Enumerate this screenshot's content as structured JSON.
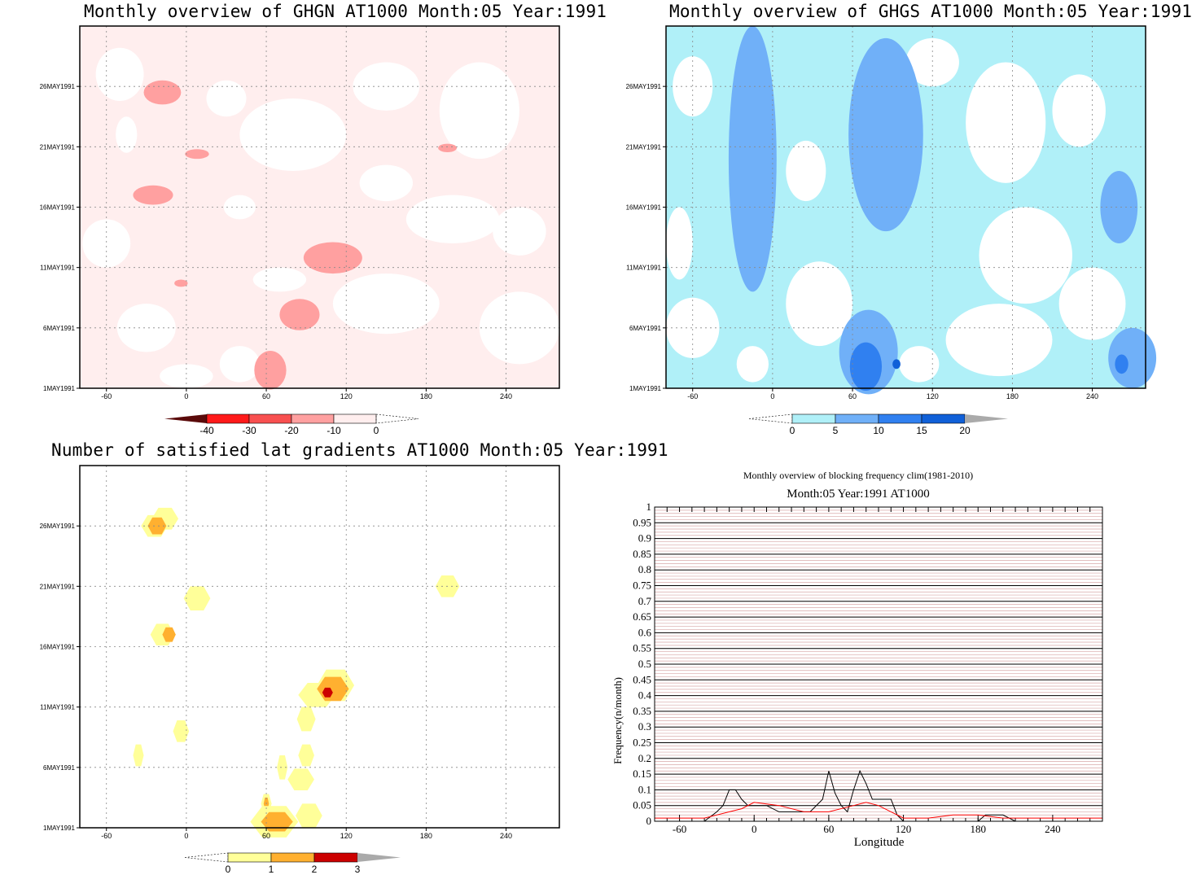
{
  "chart_data": [
    {
      "type": "heatmap",
      "title": "Monthly overview of GHGN AT1000 Month:05 Year:1991",
      "x_ticks": [
        "-60",
        "0",
        "60",
        "120",
        "180",
        "240"
      ],
      "y_ticks": [
        "1MAY1991",
        "6MAY1991",
        "11MAY1991",
        "16MAY1991",
        "21MAY1991",
        "26MAY1991"
      ],
      "xlim": [
        -80,
        280
      ],
      "ylim": [
        1,
        31
      ],
      "colorbar": {
        "levels": [
          "-40",
          "-30",
          "-20",
          "-10",
          "0"
        ],
        "colors": [
          "#5a0a0a",
          "#ff1a1a",
          "#f85050",
          "#ffa0a0",
          "#ffeeee"
        ]
      },
      "blobs": [
        {
          "lon": -18,
          "day": 25.5,
          "rlon": 14,
          "rday": 1.0,
          "level": -10
        },
        {
          "lon": 8,
          "day": 20.4,
          "rlon": 9,
          "rday": 0.4,
          "level": -10
        },
        {
          "lon": -25,
          "day": 17.0,
          "rlon": 15,
          "rday": 0.8,
          "level": -10
        },
        {
          "lon": 110,
          "day": 11.8,
          "rlon": 22,
          "rday": 1.3,
          "level": -10
        },
        {
          "lon": -4,
          "day": 9.7,
          "rlon": 5,
          "rday": 0.3,
          "level": -10
        },
        {
          "lon": 85,
          "day": 7.1,
          "rlon": 15,
          "rday": 1.3,
          "level": -10
        },
        {
          "lon": 63,
          "day": 2.5,
          "rlon": 12,
          "rday": 1.6,
          "level": -10
        },
        {
          "lon": 196,
          "day": 20.9,
          "rlon": 7,
          "rday": 0.35,
          "level": -10
        }
      ]
    },
    {
      "type": "heatmap",
      "title": "Monthly overview of GHGS AT1000 Month:05 Year:1991",
      "x_ticks": [
        "-60",
        "0",
        "60",
        "120",
        "180",
        "240"
      ],
      "y_ticks": [
        "1MAY1991",
        "6MAY1991",
        "11MAY1991",
        "16MAY1991",
        "21MAY1991",
        "26MAY1991"
      ],
      "xlim": [
        -80,
        280
      ],
      "ylim": [
        1,
        31
      ],
      "colorbar": {
        "levels": [
          "0",
          "5",
          "10",
          "15",
          "20"
        ],
        "colors": [
          "#b0f0f8",
          "#70b0f8",
          "#3080f0",
          "#1060d8",
          "#aaaaaa"
        ]
      },
      "blobs": [
        {
          "lon": -15,
          "day": 20,
          "rlon": 18,
          "rday": 11,
          "level": 5
        },
        {
          "lon": 85,
          "day": 22,
          "rlon": 28,
          "rday": 8,
          "level": 5
        },
        {
          "lon": 72,
          "day": 4,
          "rlon": 22,
          "rday": 3.5,
          "level": 5
        },
        {
          "lon": 260,
          "day": 16,
          "rlon": 14,
          "rday": 3,
          "level": 5
        },
        {
          "lon": 270,
          "day": 3.5,
          "rlon": 18,
          "rday": 2.5,
          "level": 5
        },
        {
          "lon": 70,
          "day": 2.8,
          "rlon": 12,
          "rday": 2.0,
          "level": 10
        },
        {
          "lon": 262,
          "day": 3.0,
          "rlon": 5,
          "rday": 0.8,
          "level": 10
        },
        {
          "lon": 93,
          "day": 3.0,
          "rlon": 3,
          "rday": 0.4,
          "level": 15
        }
      ]
    },
    {
      "type": "heatmap",
      "title": "Number of satisfied lat gradients AT1000 Month:05 Year:1991",
      "x_ticks": [
        "-60",
        "0",
        "60",
        "120",
        "180",
        "240"
      ],
      "y_ticks": [
        "1MAY1991",
        "6MAY1991",
        "11MAY1991",
        "16MAY1991",
        "21MAY1991",
        "26MAY1991"
      ],
      "xlim": [
        -80,
        280
      ],
      "ylim": [
        1,
        31
      ],
      "colorbar": {
        "levels": [
          "0",
          "1",
          "2",
          "3"
        ],
        "colors": [
          "#ffff99",
          "#ffb030",
          "#cc0000",
          "#aaaaaa"
        ]
      },
      "blobs": [
        {
          "lon": -16,
          "day": 26.6,
          "rlon": 10,
          "rday": 0.9,
          "level": 1
        },
        {
          "lon": -24,
          "day": 26.0,
          "rlon": 10,
          "rday": 0.9,
          "level": 1
        },
        {
          "lon": -22,
          "day": 26.0,
          "rlon": 7,
          "rday": 0.7,
          "level": 2
        },
        {
          "lon": 8,
          "day": 20.0,
          "rlon": 10,
          "rday": 1.0,
          "level": 1
        },
        {
          "lon": -18,
          "day": 17.0,
          "rlon": 9,
          "rday": 0.9,
          "level": 1
        },
        {
          "lon": -13,
          "day": 17.0,
          "rlon": 5,
          "rday": 0.6,
          "level": 2
        },
        {
          "lon": 196,
          "day": 21.0,
          "rlon": 9,
          "rday": 0.9,
          "level": 1
        },
        {
          "lon": 112,
          "day": 12.8,
          "rlon": 14,
          "rday": 1.3,
          "level": 1
        },
        {
          "lon": 98,
          "day": 12.0,
          "rlon": 14,
          "rday": 1.0,
          "level": 1
        },
        {
          "lon": 110,
          "day": 12.5,
          "rlon": 12,
          "rday": 1.0,
          "level": 2
        },
        {
          "lon": 106,
          "day": 12.2,
          "rlon": 4,
          "rday": 0.4,
          "level": 3
        },
        {
          "lon": 90,
          "day": 10.0,
          "rlon": 7,
          "rday": 1.0,
          "level": 1
        },
        {
          "lon": -4,
          "day": 9.0,
          "rlon": 6,
          "rday": 0.9,
          "level": 1
        },
        {
          "lon": 90,
          "day": 7.0,
          "rlon": 6,
          "rday": 0.9,
          "level": 1
        },
        {
          "lon": -36,
          "day": 7.0,
          "rlon": 4,
          "rday": 0.9,
          "level": 1
        },
        {
          "lon": 72,
          "day": 6.0,
          "rlon": 4,
          "rday": 1.0,
          "level": 1
        },
        {
          "lon": 86,
          "day": 5.0,
          "rlon": 10,
          "rday": 0.9,
          "level": 1
        },
        {
          "lon": 60,
          "day": 3.0,
          "rlon": 4,
          "rday": 0.8,
          "level": 1
        },
        {
          "lon": 60,
          "day": 3.0,
          "rlon": 2,
          "rday": 0.5,
          "level": 2
        },
        {
          "lon": 66,
          "day": 1.5,
          "rlon": 18,
          "rday": 1.3,
          "level": 1
        },
        {
          "lon": 92,
          "day": 2.0,
          "rlon": 10,
          "rday": 1.0,
          "level": 1
        },
        {
          "lon": 68,
          "day": 1.5,
          "rlon": 12,
          "rday": 0.8,
          "level": 2
        }
      ]
    },
    {
      "type": "line",
      "title": "Monthly overview of blocking frequency clim(1981-2010)",
      "subtitle": "Month:05 Year:1991  AT1000",
      "xlabel": "Longitude",
      "ylabel": "Frequency(n/month)",
      "xlim": [
        -80,
        280
      ],
      "ylim": [
        0,
        1
      ],
      "x_ticks": [
        "-60",
        "0",
        "60",
        "120",
        "180",
        "240"
      ],
      "y_ticks": [
        "0",
        "0.05",
        "0.1",
        "0.15",
        "0.2",
        "0.25",
        "0.3",
        "0.35",
        "0.4",
        "0.45",
        "0.5",
        "0.55",
        "0.6",
        "0.65",
        "0.7",
        "0.75",
        "0.8",
        "0.85",
        "0.9",
        "0.95",
        "1"
      ],
      "series": [
        {
          "color": "#000000",
          "x": [
            -80,
            -40,
            -30,
            -25,
            -20,
            -15,
            -10,
            -5,
            0,
            10,
            20,
            30,
            45,
            55,
            60,
            65,
            70,
            75,
            80,
            85,
            90,
            95,
            100,
            110,
            115,
            120,
            140,
            160,
            180,
            186,
            190,
            200,
            210,
            280
          ],
          "y": [
            0,
            0,
            0.03,
            0.05,
            0.1,
            0.1,
            0.07,
            0.05,
            0.05,
            0.05,
            0.03,
            0.03,
            0.03,
            0.07,
            0.16,
            0.09,
            0.05,
            0.03,
            0.1,
            0.16,
            0.12,
            0.07,
            0.07,
            0.07,
            0.02,
            0,
            0,
            0,
            0,
            0.02,
            0.02,
            0.02,
            0,
            0
          ]
        },
        {
          "color": "#ff0000",
          "x": [
            -80,
            -40,
            -20,
            -10,
            0,
            20,
            40,
            60,
            80,
            90,
            100,
            110,
            120,
            140,
            160,
            180,
            200,
            220,
            240,
            260,
            280
          ],
          "y": [
            0.01,
            0.01,
            0.03,
            0.04,
            0.06,
            0.05,
            0.03,
            0.03,
            0.05,
            0.06,
            0.05,
            0.03,
            0.01,
            0.01,
            0.02,
            0.02,
            0.01,
            0.01,
            0.01,
            0.01,
            0.01
          ]
        }
      ]
    }
  ]
}
